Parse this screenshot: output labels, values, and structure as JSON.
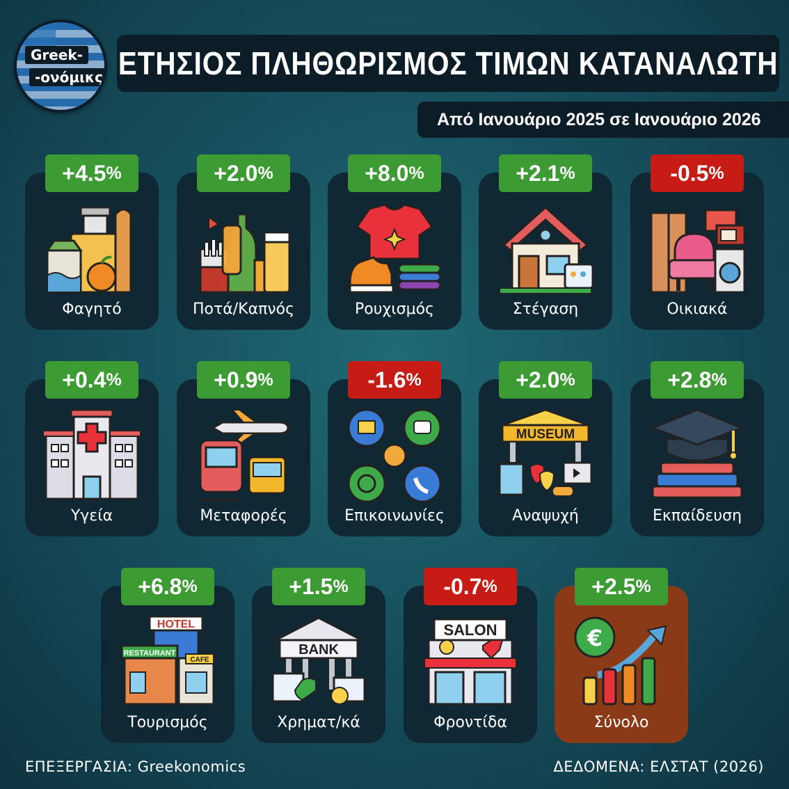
{
  "logo": {
    "line1": "Greek-",
    "line2": "-ονόμικς"
  },
  "title": "ΕΤΗΣΙΟΣ ΠΛΗΘΩΡΙΣΜΟΣ ΤΙΜΩΝ ΚΑΤΑΝΑΛΩΤΗ",
  "subtitle": "Από Ιανουάριο 2025 σε Ιανουάριο 2026",
  "footer": {
    "left": "ΕΠΕΞΕΡΓΑΣΙΑ: Greekonomics",
    "right": "ΔΕΔΟΜΕΝΑ: ΕΛΣΤΑΤ (2026)"
  },
  "colors": {
    "positive": "#3d9b33",
    "negative": "#c71b16",
    "card": "#0f2834",
    "total_card": "#8a3a16"
  },
  "chart_data": {
    "type": "table",
    "title": "ΕΤΗΣΙΟΣ ΠΛΗΘΩΡΙΣΜΟΣ ΤΙΜΩΝ ΚΑΤΑΝΑΛΩΤΗ",
    "subtitle": "Από Ιανουάριο 2025 σε Ιανουάριο 2026",
    "unit": "%",
    "categories": [
      "Φαγητό",
      "Ποτά/Καπνός",
      "Ρουχισμός",
      "Στέγαση",
      "Οικιακά",
      "Υγεία",
      "Μεταφορές",
      "Επικοινωνίες",
      "Αναψυχή",
      "Εκπαίδευση",
      "Τουρισμός",
      "Χρηματ/κά",
      "Φροντίδα",
      "Σύνολο"
    ],
    "values": [
      4.5,
      2.0,
      8.0,
      2.1,
      -0.5,
      0.4,
      0.9,
      -1.6,
      2.0,
      2.8,
      6.8,
      1.5,
      -0.7,
      2.5
    ],
    "items": [
      {
        "label": "Φαγητό",
        "display": "+4.5",
        "icon": "groceries-icon"
      },
      {
        "label": "Ποτά/Καπνός",
        "display": "+2.0",
        "icon": "drinks-tobacco-icon"
      },
      {
        "label": "Ρουχισμός",
        "display": "+8.0",
        "icon": "clothing-icon"
      },
      {
        "label": "Στέγαση",
        "display": "+2.1",
        "icon": "house-icon"
      },
      {
        "label": "Οικιακά",
        "display": "-0.5",
        "icon": "household-icon"
      },
      {
        "label": "Υγεία",
        "display": "+0.4",
        "icon": "hospital-icon"
      },
      {
        "label": "Μεταφορές",
        "display": "+0.9",
        "icon": "transport-icon"
      },
      {
        "label": "Επικοινωνίες",
        "display": "-1.6",
        "icon": "communications-icon"
      },
      {
        "label": "Αναψυχή",
        "display": "+2.0",
        "icon": "museum-icon"
      },
      {
        "label": "Εκπαίδευση",
        "display": "+2.8",
        "icon": "education-icon"
      },
      {
        "label": "Τουρισμός",
        "display": "+6.8",
        "icon": "hotel-icon"
      },
      {
        "label": "Χρηματ/κά",
        "display": "+1.5",
        "icon": "bank-icon"
      },
      {
        "label": "Φροντίδα",
        "display": "-0.7",
        "icon": "salon-icon"
      },
      {
        "label": "Σύνολο",
        "display": "+2.5",
        "icon": "euro-growth-icon"
      }
    ],
    "icon_text": {
      "museum": "MUSEUM",
      "hotel": "HOTEL",
      "restaurant": "RESTAURANT",
      "cafe": "CAFE",
      "bank": "BANK",
      "salon": "SALON"
    }
  }
}
